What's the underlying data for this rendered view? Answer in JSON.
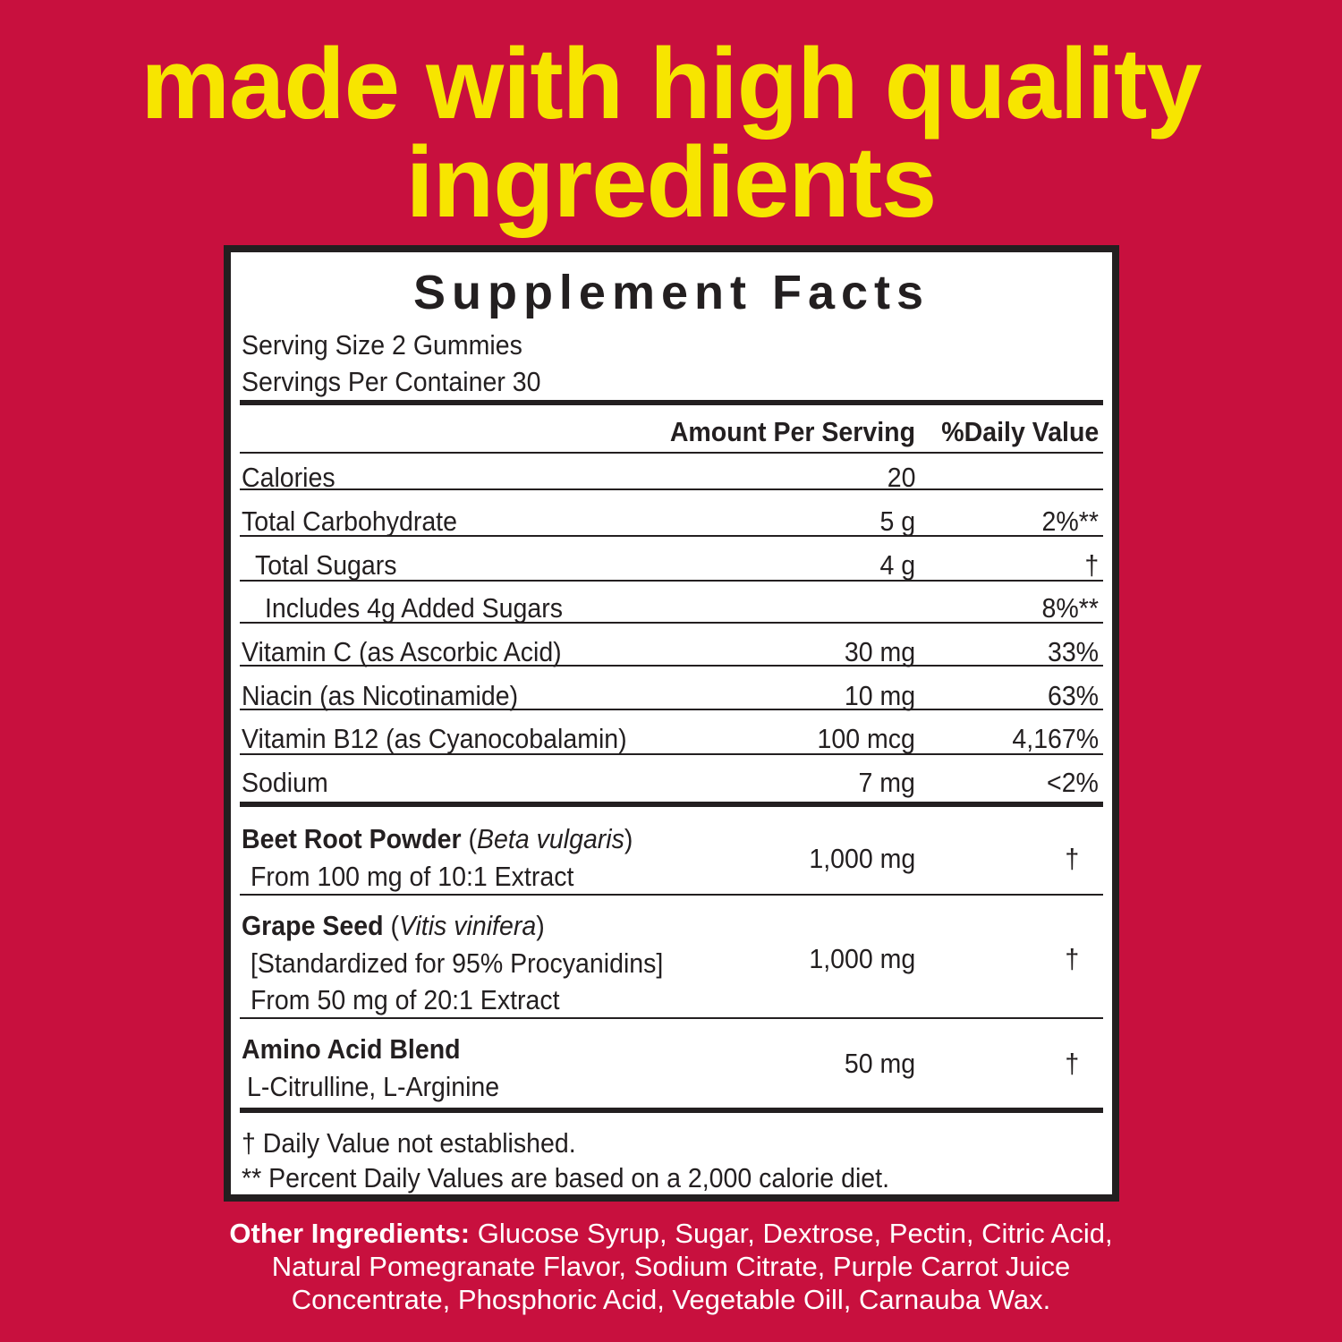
{
  "headline": [
    "made with high quality",
    "ingredients"
  ],
  "colors": {
    "background": "#c8103e",
    "headline": "#f7e500",
    "label_text": "#231f20"
  },
  "facts": {
    "title": "Supplement Facts",
    "serving_size": "Serving Size 2 Gummies",
    "servings_per_container": "Servings Per Container 30",
    "col_amount": "Amount Per Serving",
    "col_dv": "%Daily Value",
    "rows": [
      {
        "name": "Calories",
        "amount": "20",
        "dv": ""
      },
      {
        "name": "Total Carbohydrate",
        "amount": "5 g",
        "dv": "2%**"
      },
      {
        "name": "Total Sugars",
        "amount": "4 g",
        "dv": "†"
      },
      {
        "name": "Includes 4g Added Sugars",
        "amount": "",
        "dv": "8%**"
      },
      {
        "name": "Vitamin C (as Ascorbic Acid)",
        "amount": "30 mg",
        "dv": "33%"
      },
      {
        "name": "Niacin (as Nicotinamide)",
        "amount": "10 mg",
        "dv": "63%"
      },
      {
        "name": "Vitamin B12 (as Cyanocobalamin)",
        "amount": "100 mcg",
        "dv": "4,167%"
      },
      {
        "name": "Sodium",
        "amount": "7 mg",
        "dv": "<2%"
      }
    ],
    "blends": [
      {
        "name": "Beet Root Powder",
        "latin": "Beta vulgaris",
        "details": [
          "From 100 mg of 10:1 Extract"
        ],
        "amount": "1,000 mg",
        "dv": "†"
      },
      {
        "name": "Grape Seed",
        "latin": "Vitis vinifera",
        "details": [
          "[Standardized for 95% Procyanidins]",
          "From 50 mg of 20:1 Extract"
        ],
        "amount": "1,000 mg",
        "dv": "†"
      },
      {
        "name": "Amino Acid Blend",
        "details": [
          "L-Citrulline, L-Arginine"
        ],
        "amount": "50 mg",
        "dv": "†"
      }
    ],
    "footnotes": [
      "† Daily Value not established.",
      "** Percent Daily Values are based on a 2,000 calorie diet."
    ]
  },
  "other_ingredients": {
    "label": "Other Ingredients:",
    "text": " Glucose Syrup, Sugar, Dextrose, Pectin, Citric Acid, Natural Pomegranate Flavor, Sodium Citrate, Purple Carrot Juice Concentrate, Phosphoric Acid, Vegetable Oill, Carnauba Wax."
  }
}
